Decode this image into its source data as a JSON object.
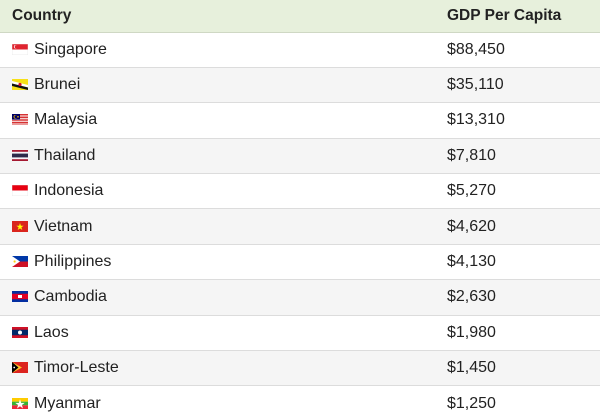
{
  "table": {
    "headers": [
      "Country",
      "GDP Per Capita"
    ],
    "rows": [
      {
        "country": "Singapore",
        "gdp": "$88,450",
        "flag_icon": "singapore-flag-icon"
      },
      {
        "country": "Brunei",
        "gdp": "$35,110",
        "flag_icon": "brunei-flag-icon"
      },
      {
        "country": "Malaysia",
        "gdp": "$13,310",
        "flag_icon": "malaysia-flag-icon"
      },
      {
        "country": "Thailand",
        "gdp": "$7,810",
        "flag_icon": "thailand-flag-icon"
      },
      {
        "country": "Indonesia",
        "gdp": "$5,270",
        "flag_icon": "indonesia-flag-icon"
      },
      {
        "country": "Vietnam",
        "gdp": "$4,620",
        "flag_icon": "vietnam-flag-icon"
      },
      {
        "country": "Philippines",
        "gdp": "$4,130",
        "flag_icon": "philippines-flag-icon"
      },
      {
        "country": "Cambodia",
        "gdp": "$2,630",
        "flag_icon": "cambodia-flag-icon"
      },
      {
        "country": "Laos",
        "gdp": "$1,980",
        "flag_icon": "laos-flag-icon"
      },
      {
        "country": "Timor-Leste",
        "gdp": "$1,450",
        "flag_icon": "timor-leste-flag-icon"
      },
      {
        "country": "Myanmar",
        "gdp": "$1,250",
        "flag_icon": "myanmar-flag-icon"
      }
    ]
  },
  "colors": {
    "header_bg": "#e7f0dc",
    "alt_row_bg": "#f5f5f5",
    "text": "#222222"
  }
}
